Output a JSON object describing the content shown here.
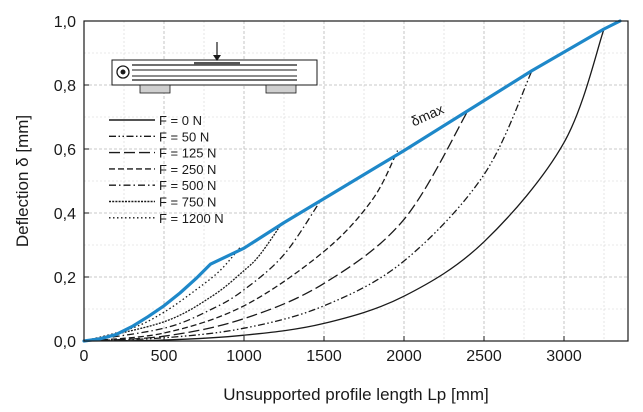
{
  "chart_data": {
    "type": "line",
    "title": "",
    "xlabel": "Unsupported profile length Lp [mm]",
    "ylabel": "Deflection δ [mm]",
    "xlim": [
      0,
      3400
    ],
    "ylim": [
      0,
      1.0
    ],
    "xticks": [
      0,
      500,
      1000,
      1500,
      2000,
      2500,
      3000
    ],
    "xtick_labels": [
      "0",
      "500",
      "1000",
      "1500",
      "2000",
      "2500",
      "3000"
    ],
    "yticks": [
      0,
      0.2,
      0.4,
      0.6,
      0.8,
      1.0
    ],
    "ytick_labels": [
      "0,0",
      "0,2",
      "0,4",
      "0,6",
      "0,8",
      "1,0"
    ],
    "grid": true,
    "legend_position": "upper-left",
    "accent_color": "#1e88c9",
    "inset": "profile-sketch-with-load-arrow",
    "annotation": {
      "text": "δmax",
      "x": 2060,
      "y": 0.67
    },
    "envelope": {
      "name": "δmax",
      "x": [
        0,
        100,
        200,
        300,
        400,
        500,
        600,
        700,
        790,
        1000,
        1250,
        1500,
        2000,
        2400,
        2800,
        3250,
        3350
      ],
      "y": [
        0.0,
        0.007,
        0.02,
        0.045,
        0.076,
        0.11,
        0.15,
        0.195,
        0.24,
        0.29,
        0.37,
        0.445,
        0.595,
        0.72,
        0.845,
        0.975,
        1.0
      ]
    },
    "series": [
      {
        "name": "F = 0 N",
        "dash": "solid",
        "x": [
          0,
          500,
          1000,
          1500,
          2000,
          2500,
          3000,
          3250
        ],
        "y": [
          0.0,
          0.003,
          0.018,
          0.055,
          0.14,
          0.31,
          0.62,
          0.975
        ]
      },
      {
        "name": "F = 50 N",
        "dash": "dashdotdot",
        "x": [
          0,
          500,
          1000,
          1500,
          2000,
          2500,
          2800
        ],
        "y": [
          0.0,
          0.01,
          0.04,
          0.11,
          0.25,
          0.52,
          0.845
        ]
      },
      {
        "name": "F = 125 N",
        "dash": "longdash",
        "x": [
          0,
          500,
          1000,
          1500,
          2000,
          2400
        ],
        "y": [
          0.0,
          0.015,
          0.07,
          0.18,
          0.38,
          0.72
        ]
      },
      {
        "name": "F = 250 N",
        "dash": "dash",
        "x": [
          0,
          500,
          1000,
          1500,
          1800,
          1960
        ],
        "y": [
          0.0,
          0.025,
          0.11,
          0.28,
          0.44,
          0.595
        ]
      },
      {
        "name": "F = 500 N",
        "dash": "dashdot",
        "x": [
          0,
          500,
          800,
          1000,
          1250,
          1480
        ],
        "y": [
          0.0,
          0.04,
          0.1,
          0.16,
          0.27,
          0.44
        ]
      },
      {
        "name": "F = 750 N",
        "dash": "densedot",
        "x": [
          0,
          500,
          800,
          1000,
          1100,
          1240
        ],
        "y": [
          0.0,
          0.06,
          0.14,
          0.22,
          0.27,
          0.37
        ]
      },
      {
        "name": "F = 1200 N",
        "dash": "dot",
        "x": [
          0,
          300,
          500,
          700,
          850,
          980
        ],
        "y": [
          0.0,
          0.04,
          0.09,
          0.16,
          0.22,
          0.295
        ]
      }
    ]
  }
}
